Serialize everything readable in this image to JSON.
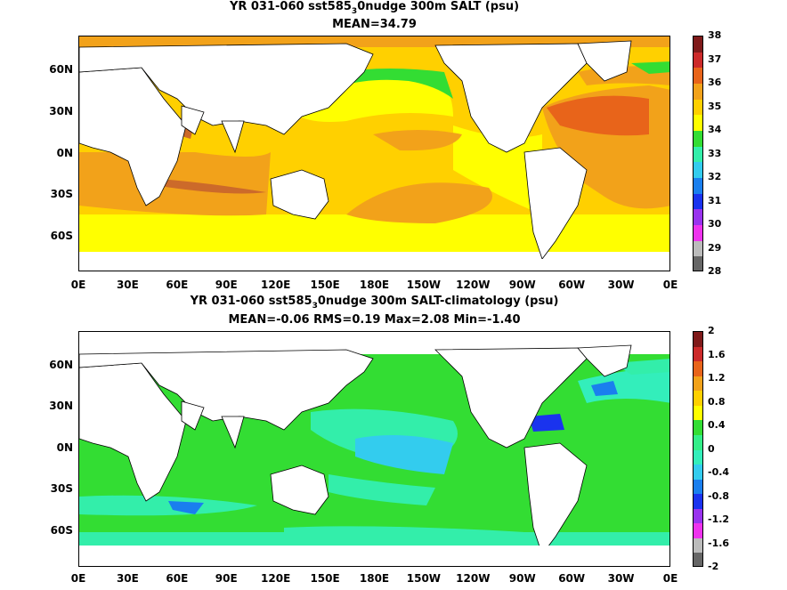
{
  "x_ticks": [
    "0E",
    "30E",
    "60E",
    "90E",
    "120E",
    "150E",
    "180E",
    "150W",
    "120W",
    "90W",
    "60W",
    "30W",
    "0E"
  ],
  "y_ticks": [
    "60N",
    "30N",
    "0N",
    "30S",
    "60S"
  ],
  "top_panel": {
    "title": "YR 031-060 sst585",
    "title_sub": "3",
    "title_rest": "0nudge 300m SALT (psu)",
    "stats": "MEAN=34.79",
    "colorbar": {
      "labels": [
        "38",
        "37",
        "36",
        "35",
        "34",
        "33",
        "32",
        "31",
        "30",
        "29",
        "28"
      ],
      "colors": [
        "#7f1a1a",
        "#cc2a2a",
        "#e8641a",
        "#f2a21a",
        "#ffd000",
        "#ffff00",
        "#33dd33",
        "#33eeaa",
        "#33ccee",
        "#1a7fee",
        "#1a33ee",
        "#9933ee",
        "#ee33ee",
        "#bbbbbb",
        "#666666"
      ]
    }
  },
  "bottom_panel": {
    "title": "YR 031-060 sst585",
    "title_sub": "3",
    "title_rest": "0nudge 300m SALT-climatology (psu)",
    "stats": "MEAN=-0.06   RMS=0.19   Max=2.08   Min=-1.40",
    "colorbar": {
      "labels": [
        "2",
        "1.6",
        "1.2",
        "0.8",
        "0.4",
        "0",
        "-0.4",
        "-0.8",
        "-1.2",
        "-1.6",
        "-2"
      ],
      "colors": [
        "#7f1a1a",
        "#cc2a2a",
        "#e8641a",
        "#f2a21a",
        "#ffd000",
        "#ffff00",
        "#33dd33",
        "#33ee88",
        "#33eebb",
        "#33ccee",
        "#1a7fee",
        "#1a33ee",
        "#9933ee",
        "#ee33ee",
        "#bbbbbb",
        "#666666"
      ]
    }
  }
}
